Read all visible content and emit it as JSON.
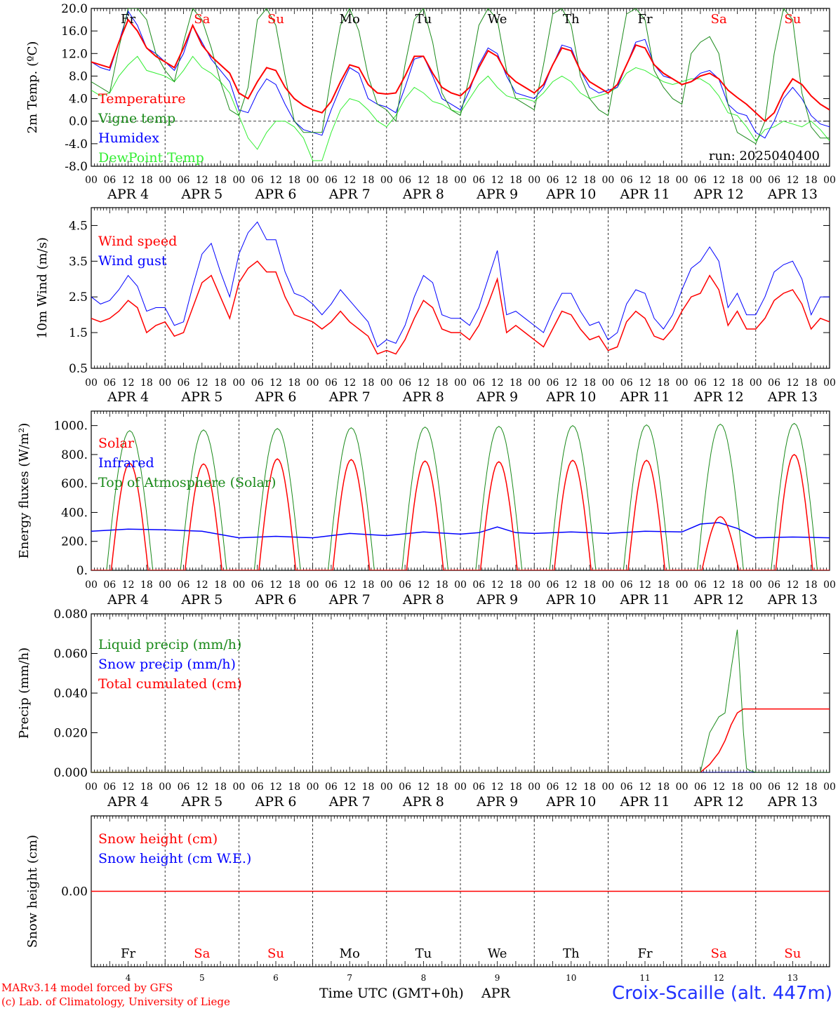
{
  "colors": {
    "red": "#ff0000",
    "green": "#1a8a1a",
    "blue": "#0000ff",
    "lightgreen": "#33ee33",
    "weekend": "#ff0000",
    "weekday": "#000000"
  },
  "footer": {
    "credit_line1": "MARv3.14 model forced by GFS",
    "credit_line2": "(c) Lab. of Climatology, University of Liege",
    "xaxis_title": "Time UTC (GMT+0h)",
    "month": "APR",
    "station": "Croix-Scaille (alt. 447m)"
  },
  "chart_data": {
    "hour_ticks": [
      "00",
      "06",
      "12",
      "18"
    ],
    "dates": [
      "APR 4",
      "APR 5",
      "APR 6",
      "APR 7",
      "APR 8",
      "APR 9",
      "APR 10",
      "APR 11",
      "APR 12",
      "APR 13"
    ],
    "day_numbers": [
      "4",
      "5",
      "6",
      "7",
      "8",
      "9",
      "10",
      "11",
      "12",
      "13"
    ],
    "weekdays": [
      "Fr",
      "Sa",
      "Su",
      "Mo",
      "Tu",
      "We",
      "Th",
      "Fr",
      "Sa",
      "Su"
    ],
    "weekend_flags": [
      false,
      true,
      true,
      false,
      false,
      false,
      false,
      false,
      true,
      true
    ],
    "panels": [
      {
        "id": "temperature",
        "type": "line",
        "ylabel": "2m Temp. (ºC)",
        "ylim": [
          -8,
          20
        ],
        "yticks": [
          "20.0",
          "16.0",
          "12.0",
          "8.0",
          "4.0",
          "0.0",
          "-4.0",
          "-8.0"
        ],
        "ytick_values": [
          20,
          16,
          12,
          8,
          4,
          0,
          -4,
          -8
        ],
        "zero_line": true,
        "annotation": "run: 2025040400",
        "x_hours": [
          0,
          3,
          6,
          9,
          12,
          15,
          18,
          21,
          24,
          27,
          30,
          33,
          36,
          39,
          42,
          45,
          48,
          51,
          54,
          57,
          60,
          63,
          66,
          69,
          72,
          75,
          78,
          81,
          84,
          87,
          90,
          93,
          96,
          99,
          102,
          105,
          108,
          111,
          114,
          117,
          120,
          123,
          126,
          129,
          132,
          135,
          138,
          141,
          144,
          147,
          150,
          153,
          156,
          159,
          162,
          165,
          168,
          171,
          174,
          177,
          180,
          183,
          186,
          189,
          192,
          195,
          198,
          201,
          204,
          207,
          210,
          213,
          216,
          219,
          222,
          225,
          228,
          231,
          234,
          237,
          240
        ],
        "series": [
          {
            "name": "Temperature",
            "color": "#ff0000",
            "width": 2,
            "values": [
              10.5,
              10,
              9.5,
              14,
              18,
              16,
              13,
              11.5,
              10.5,
              9.5,
              13,
              17,
              13.5,
              11.5,
              10,
              8.5,
              5,
              4,
              7,
              9.5,
              9,
              6,
              4,
              2.8,
              2,
              1.5,
              3.5,
              7,
              10,
              9.5,
              6.5,
              5,
              4.8,
              5,
              8,
              11.5,
              11.5,
              8.5,
              6,
              5,
              4.5,
              6,
              9.5,
              12.5,
              11.5,
              8.5,
              7,
              6,
              5,
              6.5,
              10,
              13,
              12.5,
              9,
              7,
              6,
              5,
              6.5,
              10,
              13.5,
              13,
              10,
              8.5,
              7.5,
              6.5,
              7,
              8,
              8.5,
              7.5,
              5.5,
              4.2,
              3,
              1.5,
              0,
              1.5,
              5,
              7.5,
              6.5,
              4.5,
              3,
              2
            ]
          },
          {
            "name": "Vigne temp",
            "color": "#1a8a1a",
            "width": 1,
            "values": [
              7,
              6,
              5,
              13,
              20,
              20,
              18,
              12,
              9,
              7,
              14,
              20,
              18,
              13,
              7,
              2,
              1,
              6,
              18,
              20,
              17,
              8,
              0,
              -2,
              -2,
              -2,
              8,
              17,
              20,
              16,
              8,
              3,
              2,
              0,
              10,
              18,
              20,
              14,
              5,
              2,
              1,
              8,
              17,
              20,
              18,
              9,
              4,
              3,
              2,
              10,
              19,
              20,
              17,
              8,
              4,
              2,
              1,
              10,
              19,
              20,
              18,
              9,
              6,
              4,
              3,
              12,
              14,
              15,
              12,
              3,
              -2,
              -3,
              -4,
              0,
              12,
              20,
              18,
              5,
              -1,
              -3,
              -3
            ]
          },
          {
            "name": "Humidex",
            "color": "#0000ff",
            "width": 1,
            "values": [
              10.5,
              9.5,
              9,
              14,
              19.5,
              17,
              13,
              12,
              10.5,
              9,
              12,
              17,
              14,
              11,
              9,
              7,
              2,
              1.5,
              5,
              7.5,
              6.5,
              3,
              0,
              -1.5,
              -2,
              -2.5,
              2,
              6,
              9.5,
              8.5,
              4,
              3,
              2.5,
              1.5,
              6,
              11,
              11.5,
              8,
              4,
              3,
              2,
              5.5,
              10,
              13,
              12,
              8,
              5,
              4.5,
              4,
              6,
              10,
              13.5,
              13,
              9,
              6,
              5,
              5.5,
              6,
              10,
              14,
              14.5,
              10,
              8,
              7.5,
              6.5,
              7,
              8.5,
              9,
              7.5,
              3,
              1.5,
              1,
              -2,
              -3,
              0,
              4,
              6,
              4,
              1,
              -0.5,
              -1
            ]
          },
          {
            "name": "DewPoint Temp",
            "color": "#33ee33",
            "width": 1,
            "values": [
              5.5,
              4.5,
              5,
              8,
              10,
              11.5,
              9,
              8.5,
              8,
              7,
              9,
              11.5,
              9.5,
              8.5,
              7,
              5,
              1,
              -3,
              -5,
              -2,
              0,
              0,
              -1,
              -3,
              -7,
              -7,
              -2,
              2,
              4,
              3.5,
              2,
              0,
              -1,
              1,
              4,
              6,
              5,
              3.5,
              3,
              2,
              1.5,
              4,
              6.5,
              8,
              6,
              4.5,
              4,
              4,
              3.5,
              5,
              7,
              8,
              7,
              5,
              4,
              4.5,
              5,
              6,
              8.5,
              9.5,
              9,
              8,
              7,
              6.5,
              7,
              7.5,
              7.5,
              6.5,
              4.5,
              1.5,
              1,
              -1,
              -3.5,
              -1.5,
              -1,
              0,
              -0.5,
              -1,
              0,
              -1.5,
              -3.5
            ]
          }
        ]
      },
      {
        "id": "wind",
        "type": "line",
        "ylabel": "10m Wind (m/s)",
        "ylim": [
          0.5,
          5.0
        ],
        "yticks": [
          "4.5",
          "3.5",
          "2.5",
          "1.5",
          "0.5"
        ],
        "ytick_values": [
          4.5,
          3.5,
          2.5,
          1.5,
          0.5
        ],
        "x_hours": [
          0,
          3,
          6,
          9,
          12,
          15,
          18,
          21,
          24,
          27,
          30,
          33,
          36,
          39,
          42,
          45,
          48,
          51,
          54,
          57,
          60,
          63,
          66,
          69,
          72,
          75,
          78,
          81,
          84,
          87,
          90,
          93,
          96,
          99,
          102,
          105,
          108,
          111,
          114,
          117,
          120,
          123,
          126,
          129,
          132,
          135,
          138,
          141,
          144,
          147,
          150,
          153,
          156,
          159,
          162,
          165,
          168,
          171,
          174,
          177,
          180,
          183,
          186,
          189,
          192,
          195,
          198,
          201,
          204,
          207,
          210,
          213,
          216,
          219,
          222,
          225,
          228,
          231,
          234,
          237,
          240
        ],
        "series": [
          {
            "name": "Wind speed",
            "color": "#ff0000",
            "width": 1.5,
            "values": [
              1.9,
              1.8,
              1.9,
              2.1,
              2.4,
              2.2,
              1.5,
              1.7,
              1.8,
              1.4,
              1.5,
              2.2,
              2.9,
              3.1,
              2.5,
              1.9,
              2.9,
              3.3,
              3.5,
              3.2,
              3.2,
              2.5,
              2.0,
              1.9,
              1.8,
              1.6,
              1.8,
              2.1,
              1.8,
              1.6,
              1.4,
              0.9,
              1.0,
              0.9,
              1.3,
              1.9,
              2.4,
              2.2,
              1.6,
              1.5,
              1.5,
              1.3,
              1.7,
              2.3,
              3.0,
              1.5,
              1.7,
              1.5,
              1.3,
              1.1,
              1.6,
              2.1,
              2.0,
              1.6,
              1.3,
              1.4,
              1.0,
              1.1,
              1.8,
              2.1,
              1.9,
              1.4,
              1.3,
              1.6,
              2.1,
              2.5,
              2.6,
              3.1,
              2.7,
              1.7,
              2.1,
              1.6,
              1.6,
              1.9,
              2.4,
              2.6,
              2.7,
              2.3,
              1.6,
              1.9,
              1.8
            ]
          },
          {
            "name": "Wind gust",
            "color": "#0000ff",
            "width": 1,
            "values": [
              2.5,
              2.3,
              2.4,
              2.7,
              3.1,
              2.8,
              2.1,
              2.2,
              2.2,
              1.7,
              1.8,
              2.8,
              3.7,
              4.0,
              3.2,
              2.5,
              3.7,
              4.3,
              4.6,
              4.1,
              4.1,
              3.2,
              2.6,
              2.5,
              2.3,
              2.0,
              2.3,
              2.7,
              2.4,
              2.1,
              1.8,
              1.1,
              1.3,
              1.2,
              1.7,
              2.5,
              3.1,
              2.9,
              2.0,
              1.9,
              1.9,
              1.7,
              2.2,
              3.0,
              3.8,
              2.0,
              2.1,
              1.9,
              1.7,
              1.5,
              2.1,
              2.6,
              2.6,
              2.1,
              1.7,
              1.8,
              1.3,
              1.5,
              2.3,
              2.7,
              2.6,
              1.9,
              1.6,
              2.0,
              2.7,
              3.3,
              3.5,
              3.9,
              3.5,
              2.2,
              2.6,
              2.0,
              2.0,
              2.5,
              3.2,
              3.4,
              3.5,
              3.0,
              2.0,
              2.5,
              2.5
            ]
          }
        ]
      },
      {
        "id": "energy",
        "type": "line",
        "ylabel": "Energy fluxes (W/m²)",
        "ylim": [
          0,
          1100
        ],
        "yticks": [
          "1000.",
          "800.",
          "600.",
          "400.",
          "200.",
          "0."
        ],
        "ytick_values": [
          1000,
          800,
          600,
          400,
          200,
          0
        ],
        "diurnal": true,
        "series": [
          {
            "name": "Solar",
            "color": "#ff0000",
            "width": 1.5,
            "daily_peak": [
              740,
              735,
              770,
              765,
              755,
              750,
              760,
              760,
              370,
              800
            ]
          },
          {
            "name": "Infrared",
            "color": "#0000ff",
            "width": 1.5,
            "x_hours": [
              0,
              12,
              24,
              36,
              48,
              60,
              72,
              84,
              96,
              108,
              120,
              126,
              132,
              138,
              144,
              156,
              168,
              180,
              192,
              198,
              204,
              210,
              216,
              228,
              240
            ],
            "values": [
              270,
              285,
              280,
              270,
              225,
              235,
              225,
              255,
              240,
              265,
              250,
              260,
              300,
              260,
              255,
              265,
              255,
              270,
              265,
              320,
              330,
              290,
              225,
              230,
              225
            ]
          },
          {
            "name": "Top of Atmosphere (Solar)",
            "color": "#1a8a1a",
            "width": 1,
            "daily_peak": [
              965,
              970,
              980,
              985,
              990,
              995,
              1000,
              1005,
              1010,
              1015
            ]
          }
        ]
      },
      {
        "id": "precip",
        "type": "line",
        "ylabel": "Precip (mm/h)",
        "ylim": [
          0,
          0.08
        ],
        "yticks": [
          "0.080",
          "0.060",
          "0.040",
          "0.020",
          "0.000"
        ],
        "ytick_values": [
          0.08,
          0.06,
          0.04,
          0.02,
          0.0
        ],
        "x_hours": [
          0,
          198,
          201,
          204,
          206,
          208,
          210,
          212,
          213,
          214,
          216,
          240
        ],
        "series": [
          {
            "name": "Liquid precip (mm/h)",
            "color": "#1a8a1a",
            "width": 1,
            "values": [
              0,
              0,
              0.02,
              0.028,
              0.03,
              0.052,
              0.072,
              0.02,
              0.002,
              0.001,
              0,
              0
            ]
          },
          {
            "name": "Snow precip (mm/h)",
            "color": "#0000ff",
            "width": 1,
            "values": [
              0,
              0,
              0,
              0,
              0,
              0,
              0,
              0,
              0,
              0,
              0,
              0
            ]
          },
          {
            "name": "Total cumulated (cm)",
            "color": "#ff0000",
            "width": 1.5,
            "values": [
              0,
              0,
              0.004,
              0.01,
              0.016,
              0.024,
              0.03,
              0.032,
              0.032,
              0.032,
              0.032,
              0.032
            ]
          }
        ]
      },
      {
        "id": "snow",
        "type": "line",
        "ylabel": "Snow height (cm)",
        "ylim": [
          -1,
          1
        ],
        "yticks": [
          "0.00"
        ],
        "ytick_values": [
          0
        ],
        "x_hours": [
          0,
          240
        ],
        "series": [
          {
            "name": "Snow height (cm)",
            "color": "#ff0000",
            "width": 1.5,
            "values": [
              0,
              0
            ]
          },
          {
            "name": "Snow height (cm W.E.)",
            "color": "#0000ff",
            "width": 1,
            "values": [
              0,
              0
            ]
          }
        ]
      }
    ]
  }
}
